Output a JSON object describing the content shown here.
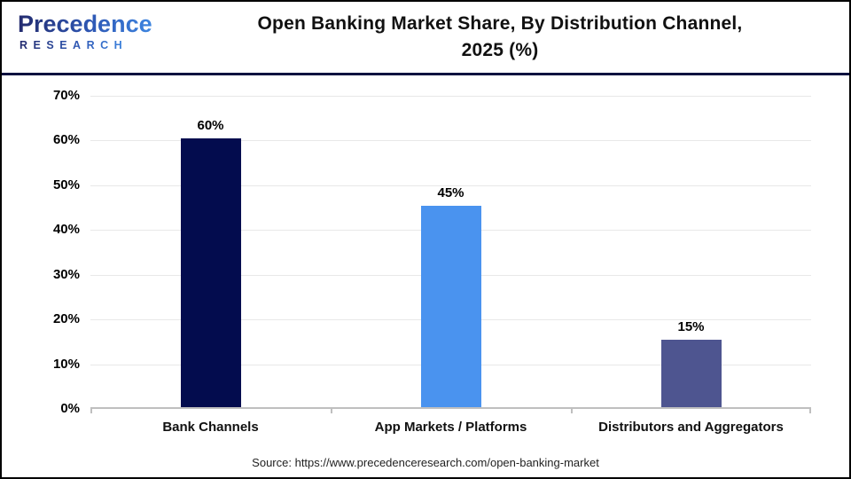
{
  "header": {
    "brand": {
      "line1": "Precedence",
      "line2": "RESEARCH"
    },
    "title_line1": "Open Banking Market Share, By Distribution Channel,",
    "title_line2": "2025 (%)"
  },
  "chart_data": {
    "type": "bar",
    "title": "Open Banking Market Share, By Distribution Channel, 2025 (%)",
    "categories": [
      "Bank Channels",
      "App Markets / Platforms",
      "Distributors and Aggregators"
    ],
    "values": [
      60,
      45,
      15
    ],
    "data_labels": [
      "60%",
      "45%",
      "15%"
    ],
    "bar_colors": [
      "#030c4e",
      "#4a93ef",
      "#4e5590"
    ],
    "xlabel": "",
    "ylabel": "",
    "ylim": [
      0,
      70
    ],
    "ytick_step": 10,
    "ytick_labels": [
      "0%",
      "10%",
      "20%",
      "30%",
      "40%",
      "50%",
      "60%",
      "70%"
    ],
    "grid": true,
    "legend": "none"
  },
  "footer": {
    "source": "Source: https://www.precedenceresearch.com/open-banking-market"
  },
  "colors": {
    "divider_navy": "#0d1240",
    "grid": "#e8e8e8",
    "axis": "#bfbfbf",
    "page_border": "#000000"
  }
}
